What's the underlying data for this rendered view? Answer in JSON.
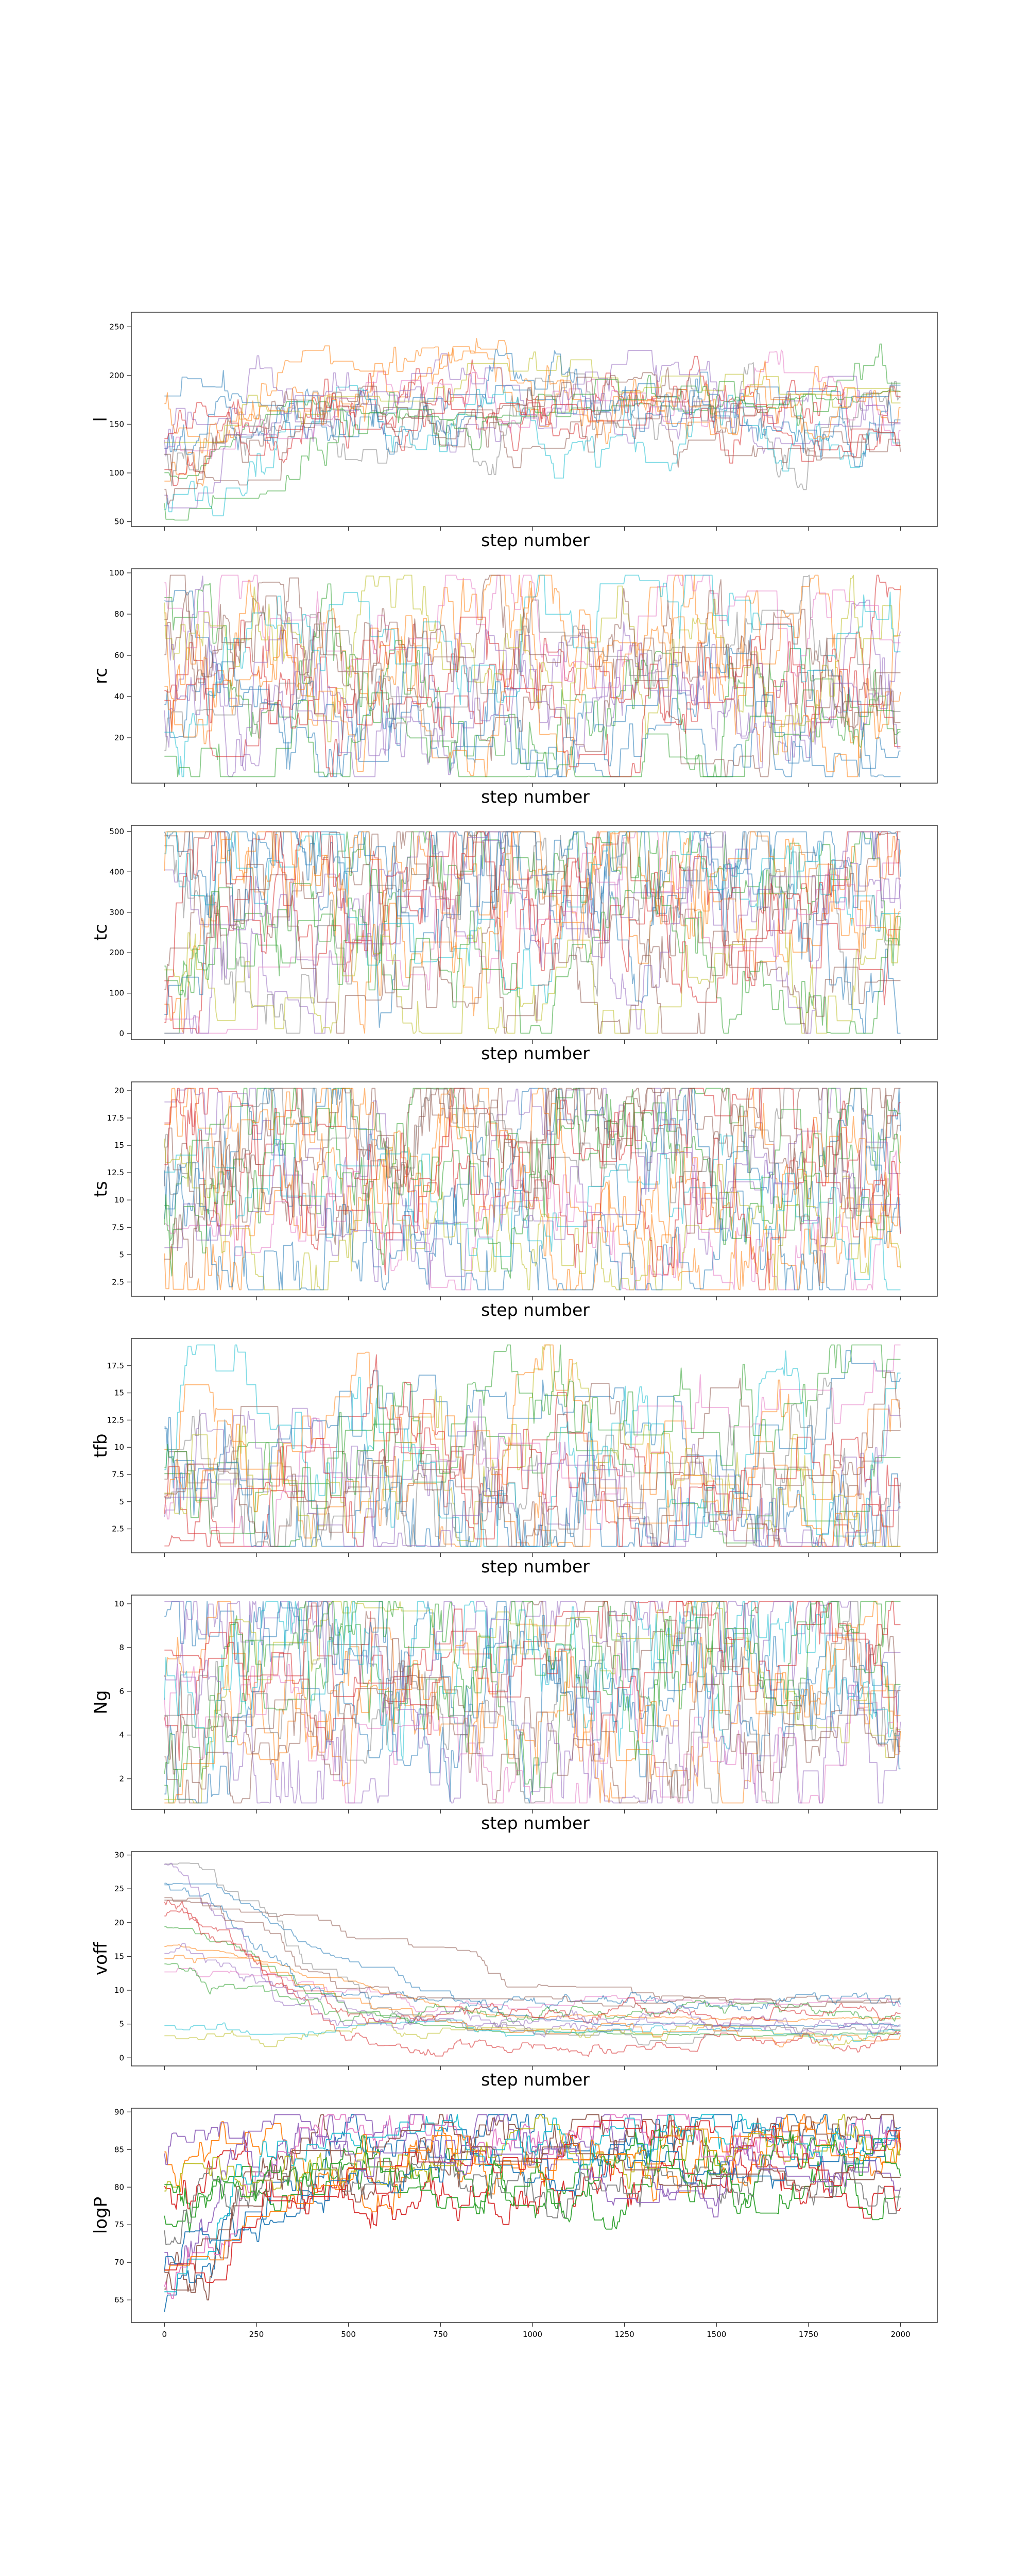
{
  "chart_data": [
    {
      "type": "line",
      "ylabel": "l",
      "xlabel": "step number",
      "xlim": [
        -90,
        2100
      ],
      "ylim": [
        45,
        265
      ],
      "yticks": [
        50,
        100,
        150,
        200,
        250
      ],
      "xticks": [
        0,
        250,
        500,
        750,
        1000,
        1250,
        1500,
        1750,
        2000
      ],
      "show_xticklabels": false,
      "n_walkers": 16,
      "steps": 2000,
      "walker_start_range": [
        60,
        180
      ],
      "walker_end_range": [
        115,
        215
      ],
      "typical_range": [
        140,
        230
      ]
    },
    {
      "type": "line",
      "ylabel": "rc",
      "xlabel": "step number",
      "xlim": [
        -90,
        2100
      ],
      "ylim": [
        -2,
        102
      ],
      "yticks": [
        20,
        40,
        60,
        80,
        100
      ],
      "xticks": [
        0,
        250,
        500,
        750,
        1000,
        1250,
        1500,
        1750,
        2000
      ],
      "show_xticklabels": false,
      "n_walkers": 16,
      "steps": 2000,
      "walker_start_range": [
        5,
        98
      ],
      "walker_end_range": [
        5,
        80
      ],
      "typical_range": [
        10,
        90
      ]
    },
    {
      "type": "line",
      "ylabel": "tc",
      "xlabel": "step number",
      "xlim": [
        -90,
        2100
      ],
      "ylim": [
        -15,
        515
      ],
      "yticks": [
        0,
        100,
        200,
        300,
        400,
        500
      ],
      "xticks": [
        0,
        250,
        500,
        750,
        1000,
        1250,
        1500,
        1750,
        2000
      ],
      "show_xticklabels": false,
      "n_walkers": 16,
      "steps": 2000,
      "walker_start_range": [
        20,
        500
      ],
      "walker_end_range": [
        20,
        480
      ],
      "typical_range": [
        10,
        500
      ]
    },
    {
      "type": "line",
      "ylabel": "ts",
      "xlabel": "step number",
      "xlim": [
        -90,
        2100
      ],
      "ylim": [
        1.2,
        20.8
      ],
      "yticks": [
        2.5,
        5.0,
        7.5,
        10.0,
        12.5,
        15.0,
        17.5,
        20.0
      ],
      "xticks": [
        0,
        250,
        500,
        750,
        1000,
        1250,
        1500,
        1750,
        2000
      ],
      "show_xticklabels": false,
      "n_walkers": 16,
      "steps": 2000,
      "walker_start_range": [
        5,
        17
      ],
      "walker_end_range": [
        2,
        20
      ],
      "typical_range": [
        2,
        20
      ]
    },
    {
      "type": "line",
      "ylabel": "tfb",
      "xlabel": "step number",
      "xlim": [
        -90,
        2100
      ],
      "ylim": [
        0.3,
        20.0
      ],
      "yticks": [
        2.5,
        5.0,
        7.5,
        10.0,
        12.5,
        15.0,
        17.5
      ],
      "xticks": [
        0,
        250,
        500,
        750,
        1000,
        1250,
        1500,
        1750,
        2000
      ],
      "show_xticklabels": false,
      "n_walkers": 16,
      "steps": 2000,
      "walker_start_range": [
        3,
        10
      ],
      "walker_end_range": [
        1,
        11
      ],
      "typical_range": [
        1,
        19
      ]
    },
    {
      "type": "line",
      "ylabel": "Ng",
      "xlabel": "step number",
      "xlim": [
        -90,
        2100
      ],
      "ylim": [
        0.6,
        10.4
      ],
      "yticks": [
        2,
        4,
        6,
        8,
        10
      ],
      "xticks": [
        0,
        250,
        500,
        750,
        1000,
        1250,
        1500,
        1750,
        2000
      ],
      "show_xticklabels": false,
      "n_walkers": 16,
      "steps": 2000,
      "walker_start_range": [
        1,
        10
      ],
      "walker_end_range": [
        2,
        10
      ],
      "typical_range": [
        1,
        10
      ]
    },
    {
      "type": "line",
      "ylabel": "voff",
      "xlabel": "step number",
      "xlim": [
        -90,
        2100
      ],
      "ylim": [
        -1.2,
        30.5
      ],
      "yticks": [
        0,
        5,
        10,
        15,
        20,
        25,
        30
      ],
      "xticks": [
        0,
        250,
        500,
        750,
        1000,
        1250,
        1500,
        1750,
        2000
      ],
      "show_xticklabels": false,
      "n_walkers": 16,
      "steps": 2000,
      "walker_start_range": [
        1,
        29
      ],
      "walker_end_range": [
        1,
        9
      ],
      "typical_range": [
        0.5,
        6
      ]
    },
    {
      "type": "line",
      "ylabel": "logP",
      "xlabel": "",
      "xlim": [
        -90,
        2100
      ],
      "ylim": [
        62,
        90.5
      ],
      "yticks": [
        65,
        70,
        75,
        80,
        85,
        90
      ],
      "xticks": [
        0,
        250,
        500,
        750,
        1000,
        1250,
        1500,
        1750,
        2000
      ],
      "show_xticklabels": true,
      "n_walkers": 16,
      "steps": 2000,
      "walker_start_range": [
        63,
        86
      ],
      "walker_end_range": [
        78,
        89
      ],
      "typical_range": [
        78,
        88
      ]
    }
  ],
  "colors": [
    "#1f77b4",
    "#ff7f0e",
    "#2ca02c",
    "#d62728",
    "#9467bd",
    "#8c564b",
    "#e377c2",
    "#7f7f7f",
    "#bcbd22",
    "#17becf"
  ]
}
